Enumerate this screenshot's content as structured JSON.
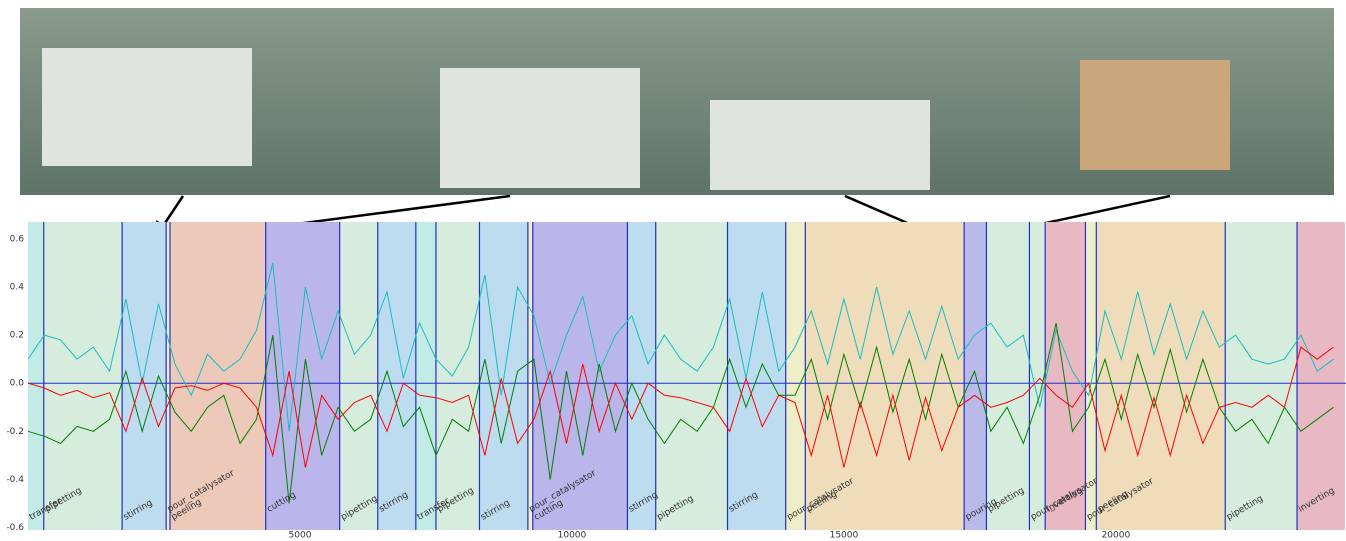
{
  "chart_data": {
    "type": "line",
    "x": [
      0,
      300,
      600,
      900,
      1200,
      1500,
      1800,
      2100,
      2400,
      2700,
      3000,
      3300,
      3600,
      3900,
      4200,
      4500,
      4800,
      5100,
      5400,
      5700,
      6000,
      6300,
      6600,
      6900,
      7200,
      7500,
      7800,
      8100,
      8400,
      8700,
      9000,
      9300,
      9600,
      9900,
      10200,
      10500,
      10800,
      11100,
      11400,
      11700,
      12000,
      12300,
      12600,
      12900,
      13200,
      13500,
      13800,
      14100,
      14400,
      14700,
      15000,
      15300,
      15600,
      15900,
      16200,
      16500,
      16800,
      17100,
      17400,
      17700,
      18000,
      18300,
      18600,
      18900,
      19200,
      19500,
      19800,
      20100,
      20400,
      20700,
      21000,
      21300,
      21600,
      21900,
      22200,
      22500,
      22800,
      23100,
      23400,
      23700,
      24000
    ],
    "series": [
      {
        "color": "#17bfbf",
        "values": [
          0.1,
          0.2,
          0.18,
          0.1,
          0.15,
          0.05,
          0.35,
          0.0,
          0.33,
          0.08,
          -0.05,
          0.12,
          0.05,
          0.1,
          0.22,
          0.5,
          -0.2,
          0.4,
          0.1,
          0.3,
          0.12,
          0.2,
          0.38,
          0.02,
          0.25,
          0.1,
          0.03,
          0.15,
          0.45,
          -0.05,
          0.4,
          0.28,
          0.0,
          0.2,
          0.36,
          0.05,
          0.2,
          0.28,
          0.08,
          0.2,
          0.1,
          0.05,
          0.15,
          0.35,
          0.02,
          0.38,
          0.05,
          0.15,
          0.3,
          0.08,
          0.35,
          0.1,
          0.4,
          0.12,
          0.3,
          0.1,
          0.32,
          0.1,
          0.2,
          0.25,
          0.15,
          0.2,
          -0.1,
          0.22,
          0.05,
          -0.05,
          0.3,
          0.1,
          0.38,
          0.12,
          0.33,
          0.1,
          0.3,
          0.15,
          0.2,
          0.1,
          0.08,
          0.1,
          0.2,
          0.05,
          0.1
        ]
      },
      {
        "color": "#008000",
        "values": [
          -0.2,
          -0.22,
          -0.25,
          -0.18,
          -0.2,
          -0.15,
          0.05,
          -0.2,
          0.03,
          -0.12,
          -0.2,
          -0.1,
          -0.05,
          -0.25,
          -0.15,
          0.2,
          -0.5,
          0.1,
          -0.3,
          -0.1,
          -0.2,
          -0.15,
          0.05,
          -0.18,
          -0.1,
          -0.3,
          -0.15,
          -0.2,
          0.1,
          -0.25,
          0.05,
          0.1,
          -0.4,
          0.05,
          -0.3,
          0.08,
          -0.2,
          0.0,
          -0.15,
          -0.25,
          -0.15,
          -0.2,
          -0.1,
          0.1,
          -0.1,
          0.08,
          -0.05,
          -0.05,
          0.1,
          -0.15,
          0.12,
          -0.1,
          0.15,
          -0.12,
          0.1,
          -0.15,
          0.12,
          -0.1,
          0.05,
          -0.2,
          -0.1,
          -0.25,
          -0.05,
          0.25,
          -0.2,
          -0.1,
          0.1,
          -0.15,
          0.12,
          -0.1,
          0.14,
          -0.12,
          0.1,
          -0.1,
          -0.2,
          -0.15,
          -0.25,
          -0.1,
          -0.2,
          -0.15,
          -0.1
        ]
      },
      {
        "color": "#ff0000",
        "values": [
          0.0,
          -0.02,
          -0.05,
          -0.03,
          -0.06,
          -0.04,
          -0.2,
          0.02,
          -0.18,
          -0.02,
          -0.01,
          -0.03,
          0.0,
          -0.02,
          -0.1,
          -0.3,
          0.05,
          -0.35,
          -0.05,
          -0.15,
          -0.08,
          -0.05,
          -0.2,
          0.0,
          -0.05,
          -0.06,
          -0.08,
          -0.05,
          -0.3,
          0.02,
          -0.25,
          -0.15,
          0.05,
          -0.25,
          0.08,
          -0.2,
          0.0,
          -0.15,
          0.0,
          -0.05,
          -0.06,
          -0.08,
          -0.1,
          -0.2,
          0.02,
          -0.18,
          -0.05,
          -0.08,
          -0.3,
          -0.05,
          -0.35,
          -0.08,
          -0.3,
          -0.05,
          -0.32,
          -0.06,
          -0.28,
          -0.1,
          -0.05,
          -0.1,
          -0.08,
          -0.05,
          0.02,
          -0.05,
          -0.1,
          0.0,
          -0.28,
          -0.05,
          -0.3,
          -0.06,
          -0.3,
          -0.05,
          -0.25,
          -0.1,
          -0.08,
          -0.1,
          -0.05,
          -0.1,
          0.15,
          0.1,
          0.15
        ]
      }
    ],
    "segments": [
      {
        "label": "transfer",
        "start": 0,
        "end": 290,
        "color": "#c3ebe6"
      },
      {
        "label": "pipetting",
        "start": 290,
        "end": 1730,
        "color": "#d6ecdd"
      },
      {
        "label": "stirring",
        "start": 1730,
        "end": 2540,
        "color": "#bddcf0"
      },
      {
        "label": "pour_catalysator",
        "start": 2540,
        "end": 2610,
        "color": "#eeefc8"
      },
      {
        "label": "peeling",
        "start": 2610,
        "end": 4370,
        "color": "#ecc9b9"
      },
      {
        "label": "cutting",
        "start": 4370,
        "end": 5730,
        "color": "#bab5ea"
      },
      {
        "label": "pipetting",
        "start": 5730,
        "end": 6430,
        "color": "#d6ecdd"
      },
      {
        "label": "stirring",
        "start": 6430,
        "end": 7130,
        "color": "#bddcf0"
      },
      {
        "label": "transfer",
        "start": 7130,
        "end": 7500,
        "color": "#c3ebe6"
      },
      {
        "label": "pipetting",
        "start": 7500,
        "end": 8300,
        "color": "#d6ecdd"
      },
      {
        "label": "stirring",
        "start": 8300,
        "end": 9190,
        "color": "#bddcf0"
      },
      {
        "label": "pour_catalysator",
        "start": 9190,
        "end": 9280,
        "color": "#eeefc8"
      },
      {
        "label": "cutting",
        "start": 9280,
        "end": 11020,
        "color": "#bab5ea"
      },
      {
        "label": "stirring",
        "start": 11020,
        "end": 11540,
        "color": "#bddcf0"
      },
      {
        "label": "pipetting",
        "start": 11540,
        "end": 12860,
        "color": "#d6ecdd"
      },
      {
        "label": "stirring",
        "start": 12860,
        "end": 13930,
        "color": "#bddcf0"
      },
      {
        "label": "pour_catalysator",
        "start": 13930,
        "end": 14290,
        "color": "#eeefc8"
      },
      {
        "label": "peeling",
        "start": 14290,
        "end": 17210,
        "color": "#efdcbb"
      },
      {
        "label": "pouring",
        "start": 17210,
        "end": 17620,
        "color": "#b9b9ea"
      },
      {
        "label": "pipetting",
        "start": 17620,
        "end": 18410,
        "color": "#d6ecdd"
      },
      {
        "label": "pour_catalysator",
        "start": 18410,
        "end": 18700,
        "color": "#d6ecdd"
      },
      {
        "label": "inverting",
        "start": 18700,
        "end": 19440,
        "color": "#e9b9c3"
      },
      {
        "label": "pour_catalysator",
        "start": 19440,
        "end": 19640,
        "color": "#eeefc8"
      },
      {
        "label": "peeling",
        "start": 19640,
        "end": 22010,
        "color": "#efdcbb"
      },
      {
        "label": "pipetting",
        "start": 22010,
        "end": 23330,
        "color": "#d6ecdd"
      },
      {
        "label": "inverting",
        "start": 23330,
        "end": 24210,
        "color": "#e9b9c3"
      }
    ],
    "boundary_color": "#1f2fd0",
    "xlim": [
      0,
      24230
    ],
    "ylim": [
      -0.61,
      0.67
    ],
    "xticks": [
      5000,
      10000,
      15000,
      20000
    ],
    "yticks": [
      -0.6,
      -0.4,
      -0.2,
      {
        "value": 0,
        "label": "0.0"
      },
      0.2,
      0.4,
      0.6
    ]
  }
}
